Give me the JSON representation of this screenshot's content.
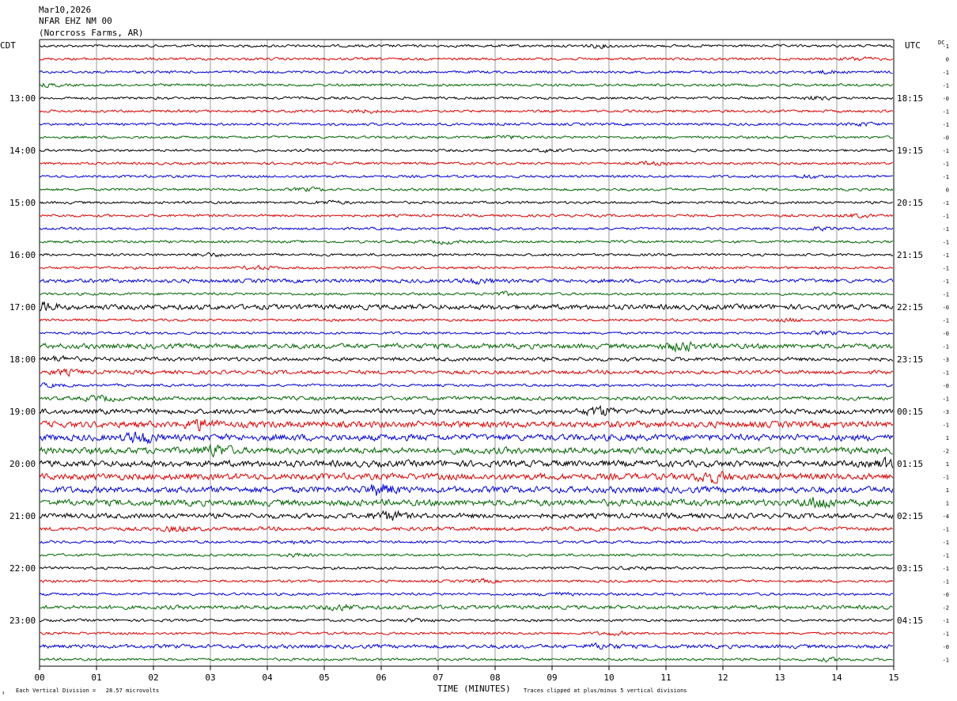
{
  "header": {
    "date": "Mar10,2026",
    "station": "NFAR EHZ NM 00",
    "location": "(Norcross Farms, AR)"
  },
  "left_zone": "CDT",
  "right_zone": "UTC",
  "dc_label": "DC",
  "footer": {
    "scale_note": "Each Vertical Division =   28.57 microvolts",
    "clip_note": "Traces clipped at plus/minus 5 vertical divisions",
    "corner_mark": "↑"
  },
  "colors": {
    "trace_cycle": [
      "#000000",
      "#dd0000",
      "#0000dd",
      "#006600"
    ],
    "grid": "#999999",
    "frame": "#000000"
  },
  "chart_data": {
    "type": "line",
    "title": "",
    "xlabel": "TIME (MINUTES)",
    "ylabel": "",
    "xlim": [
      0,
      15
    ],
    "x_ticks": [
      "00",
      "01",
      "02",
      "03",
      "04",
      "05",
      "06",
      "07",
      "08",
      "09",
      "10",
      "11",
      "12",
      "13",
      "14",
      "15"
    ],
    "rows_per_hour": 4,
    "left_hour_labels": [
      "13:00",
      "14:00",
      "15:00",
      "16:00",
      "17:00",
      "18:00",
      "19:00",
      "20:00",
      "21:00",
      "22:00",
      "23:00"
    ],
    "right_hour_labels": [
      "18:15",
      "19:15",
      "20:15",
      "21:15",
      "22:15",
      "23:15",
      "00:15",
      "01:15",
      "02:15",
      "03:15",
      "04:15"
    ],
    "first_labeled_row": 4,
    "dc_offsets": [
      "-1",
      "0",
      "-1",
      "-1",
      "-0",
      "-1",
      "-1",
      "-0",
      "-1",
      "-1",
      "-1",
      "0",
      "-1",
      "-1",
      "-1",
      "-1",
      "-1",
      "-1",
      "-1",
      "-1",
      "-0",
      "-1",
      "-0",
      "-1",
      "-3",
      "-1",
      "-0",
      "-1",
      "-3",
      "-1",
      "1",
      "-2",
      "1",
      "-1",
      "1",
      "1",
      "-4",
      "-1",
      "-1",
      "-1",
      "-1",
      "-1",
      "-0",
      "-2",
      "-1",
      "-1",
      "-0",
      "-1"
    ],
    "activity": [
      2,
      2,
      2,
      2,
      2,
      2,
      2,
      2,
      2,
      2,
      2,
      2,
      2,
      2,
      2,
      2,
      2,
      2,
      3,
      2,
      4,
      2,
      2,
      4,
      3,
      3,
      2,
      3,
      4,
      5,
      5,
      5,
      5,
      5,
      5,
      5,
      4,
      3,
      2,
      2,
      2,
      2,
      2,
      3,
      2,
      2,
      3,
      2
    ]
  }
}
